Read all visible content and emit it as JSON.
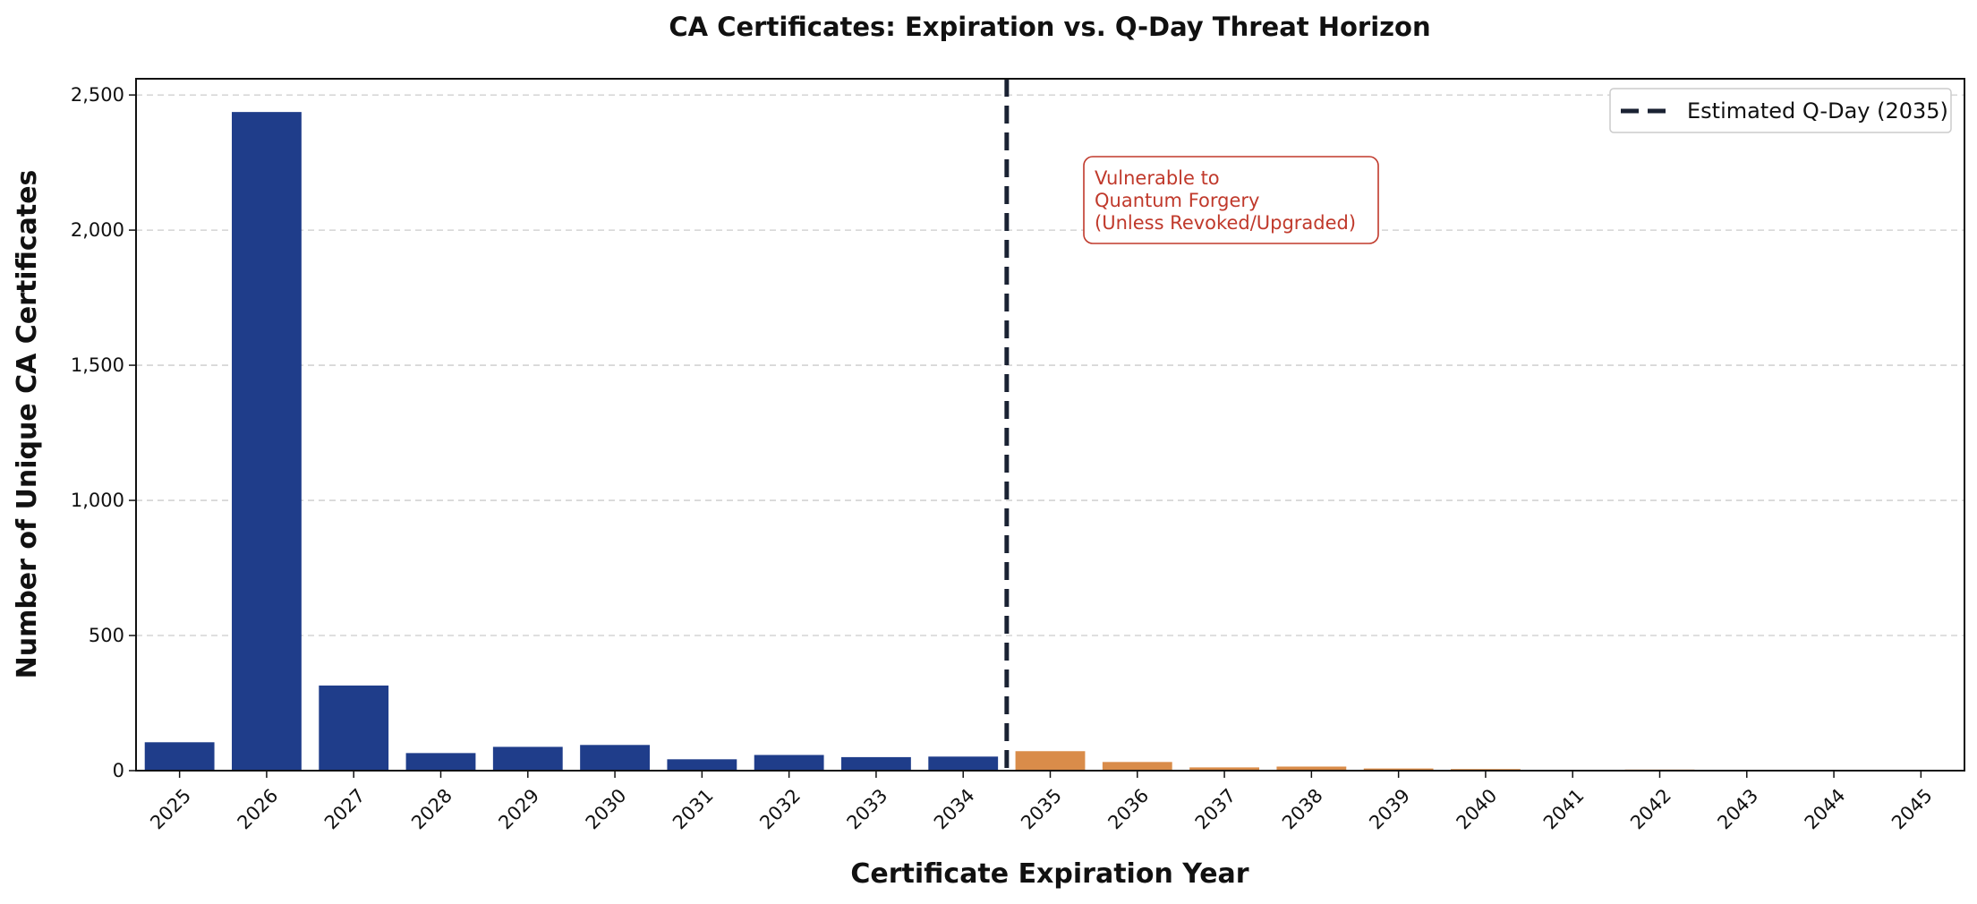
{
  "chart_data": {
    "type": "bar",
    "title": "CA Certificates: Expiration vs. Q-Day Threat Horizon",
    "xlabel": "Certificate Expiration Year",
    "ylabel": "Number of Unique CA Certificates",
    "categories": [
      "2025",
      "2026",
      "2027",
      "2028",
      "2029",
      "2030",
      "2031",
      "2032",
      "2033",
      "2034",
      "2035",
      "2036",
      "2037",
      "2038",
      "2039",
      "2040",
      "2041",
      "2042",
      "2043",
      "2044",
      "2045"
    ],
    "values": [
      105,
      2437,
      315,
      65,
      88,
      95,
      42,
      58,
      50,
      52,
      72,
      32,
      12,
      15,
      8,
      6,
      2,
      4,
      2,
      1,
      1
    ],
    "ylim": [
      0,
      2560
    ],
    "yticks": [
      0,
      500,
      1000,
      1500,
      2000,
      2500
    ],
    "ytick_labels": [
      "0",
      "500",
      "1,000",
      "1,500",
      "2,000",
      "2,500"
    ],
    "grid": "horizontal dashed",
    "legend_position": "top-right",
    "legend": [
      {
        "label": "Estimated Q-Day (2035)",
        "style": "dashed line"
      }
    ],
    "threshold_category": "2035",
    "annotation": {
      "lines": [
        "Vulnerable to",
        "Quantum Forgery",
        "(Unless Revoked/Upgraded)"
      ]
    },
    "colors": {
      "pre_qday": "#1f3d8a",
      "post_qday": "#d98c4a",
      "qday_line": "#1a2233",
      "annotation": "#c0392b",
      "grid": "#cccccc"
    }
  }
}
